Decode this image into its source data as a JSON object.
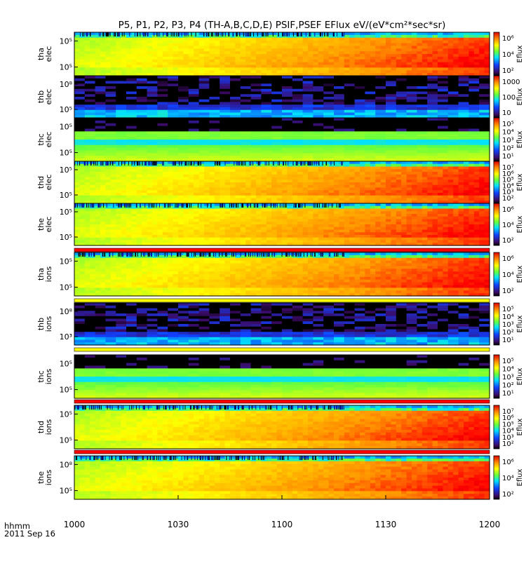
{
  "title": "P5, P1, P2, P3, P4 (TH-A,B,C,D,E) PSIF,PSEF EFlux eV/(eV*cm²*sec*sr)",
  "time_axis": {
    "label": "hhmm",
    "date": "2011 Sep 16",
    "ticks": [
      "1000",
      "1030",
      "1100",
      "1130",
      "1200"
    ]
  },
  "colorbar_label": "Eflux",
  "chart_data": {
    "type": "heatmap",
    "title": "P5, P1, P2, P3, P4 (TH-A,B,C,D,E) PSIF,PSEF EFlux eV/(eV*cm²*sec*sr)",
    "xlabel": "hhmm",
    "x_range": [
      "10:00",
      "12:00"
    ],
    "x_ticks": [
      "1000",
      "1030",
      "1100",
      "1130",
      "1200"
    ],
    "date": "2011 Sep 16",
    "z_scale": "log",
    "colorscale": [
      "#000000",
      "#3b0a63",
      "#1040ff",
      "#00e0ff",
      "#60ff40",
      "#ffff00",
      "#ff9000",
      "#ff0000",
      "#d00000"
    ],
    "panels": [
      {
        "probe": "tha",
        "species": "elec",
        "ytick": [
          "10⁵",
          "10⁵"
        ],
        "cbar_ticks": [
          "10⁶",
          "10⁴",
          "10²"
        ],
        "pattern": "warm",
        "flags": "none"
      },
      {
        "probe": "thb",
        "species": "elec",
        "ytick": [
          "10⁸",
          "10⁵"
        ],
        "cbar_ticks": [
          "1000",
          "100",
          "10"
        ],
        "pattern": "sparse",
        "flags": "none"
      },
      {
        "probe": "thc",
        "species": "elec",
        "ytick": [
          "10⁵",
          "10⁵"
        ],
        "cbar_ticks": [
          "10⁵",
          "10⁴",
          "10³",
          "10²",
          "10¹"
        ],
        "pattern": "band",
        "flags": "none"
      },
      {
        "probe": "thd",
        "species": "elec",
        "ytick": [
          "10⁵",
          "10⁵"
        ],
        "cbar_ticks": [
          "10⁷",
          "10⁶",
          "10⁵",
          "10⁴",
          "10³",
          "10²"
        ],
        "pattern": "warm",
        "flags": "none"
      },
      {
        "probe": "the",
        "species": "elec",
        "ytick": [
          "10⁵",
          "10⁵"
        ],
        "cbar_ticks": [
          "10⁶",
          "10⁴",
          "10²"
        ],
        "pattern": "warm",
        "flags": "red"
      },
      {
        "probe": "tha",
        "species": "ions",
        "ytick": [
          "10⁵",
          "10⁵"
        ],
        "cbar_ticks": [
          "10⁶",
          "10⁴",
          "10²"
        ],
        "pattern": "warm",
        "flags": "yellow"
      },
      {
        "probe": "thb",
        "species": "ions",
        "ytick": [
          "10⁸",
          "10³"
        ],
        "cbar_ticks": [
          "10⁵",
          "10⁴",
          "10³",
          "10²",
          "10¹"
        ],
        "pattern": "sparse",
        "flags": "yellow"
      },
      {
        "probe": "thc",
        "species": "ions",
        "ytick": [
          "10⁵",
          "10⁵"
        ],
        "cbar_ticks": [
          "10⁵",
          "10⁴",
          "10³",
          "10²",
          "10¹"
        ],
        "pattern": "band",
        "flags": "red"
      },
      {
        "probe": "thd",
        "species": "ions",
        "ytick": [
          "10⁵",
          "10⁵"
        ],
        "cbar_ticks": [
          "10⁷",
          "10⁶",
          "10⁵",
          "10⁴",
          "10³",
          "10²"
        ],
        "pattern": "warm",
        "flags": "red"
      },
      {
        "probe": "the",
        "species": "ions",
        "ytick": [
          "10⁸",
          "10⁵"
        ],
        "cbar_ticks": [
          "10⁶",
          "10⁴",
          "10²"
        ],
        "pattern": "warm",
        "flags": "none"
      }
    ]
  }
}
